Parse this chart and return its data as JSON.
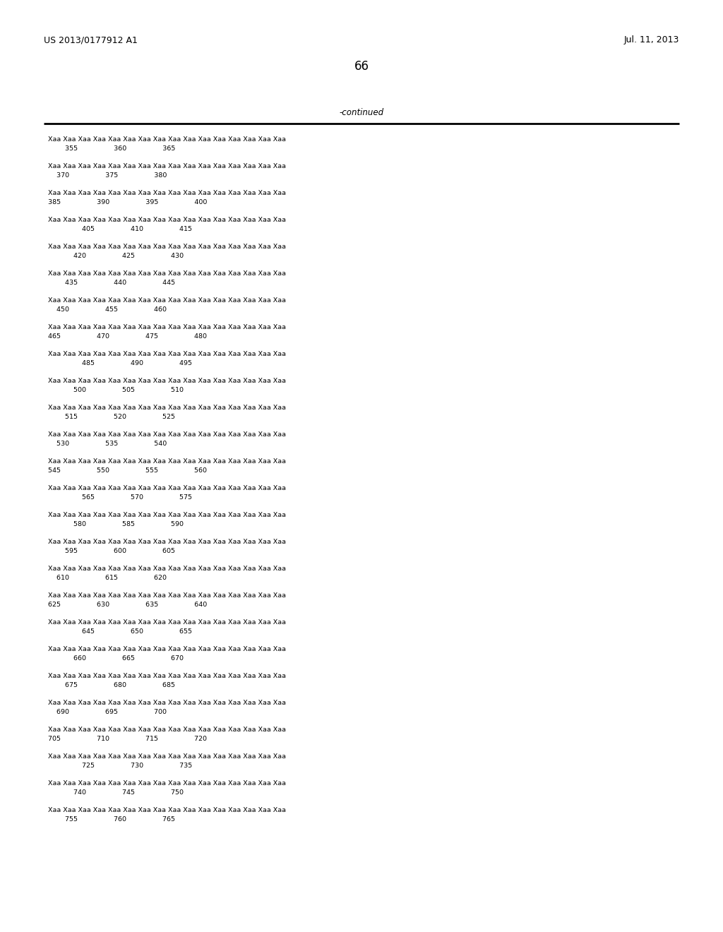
{
  "header_left": "US 2013/0177912 A1",
  "header_right": "Jul. 11, 2013",
  "page_number": "66",
  "continued_label": "-continued",
  "background_color": "#ffffff",
  "text_color": "#000000",
  "sequence_rows": [
    {
      "xaa_line": "Xaa Xaa Xaa Xaa Xaa Xaa Xaa Xaa Xaa Xaa Xaa Xaa Xaa Xaa Xaa Xaa",
      "num_line": "        355                 360                 365"
    },
    {
      "xaa_line": "Xaa Xaa Xaa Xaa Xaa Xaa Xaa Xaa Xaa Xaa Xaa Xaa Xaa Xaa Xaa Xaa",
      "num_line": "    370                 375                 380"
    },
    {
      "xaa_line": "Xaa Xaa Xaa Xaa Xaa Xaa Xaa Xaa Xaa Xaa Xaa Xaa Xaa Xaa Xaa Xaa",
      "num_line": "385                 390                 395                 400"
    },
    {
      "xaa_line": "Xaa Xaa Xaa Xaa Xaa Xaa Xaa Xaa Xaa Xaa Xaa Xaa Xaa Xaa Xaa Xaa",
      "num_line": "                405                 410                 415"
    },
    {
      "xaa_line": "Xaa Xaa Xaa Xaa Xaa Xaa Xaa Xaa Xaa Xaa Xaa Xaa Xaa Xaa Xaa Xaa",
      "num_line": "            420                 425                 430"
    },
    {
      "xaa_line": "Xaa Xaa Xaa Xaa Xaa Xaa Xaa Xaa Xaa Xaa Xaa Xaa Xaa Xaa Xaa Xaa",
      "num_line": "        435                 440                 445"
    },
    {
      "xaa_line": "Xaa Xaa Xaa Xaa Xaa Xaa Xaa Xaa Xaa Xaa Xaa Xaa Xaa Xaa Xaa Xaa",
      "num_line": "    450                 455                 460"
    },
    {
      "xaa_line": "Xaa Xaa Xaa Xaa Xaa Xaa Xaa Xaa Xaa Xaa Xaa Xaa Xaa Xaa Xaa Xaa",
      "num_line": "465                 470                 475                 480"
    },
    {
      "xaa_line": "Xaa Xaa Xaa Xaa Xaa Xaa Xaa Xaa Xaa Xaa Xaa Xaa Xaa Xaa Xaa Xaa",
      "num_line": "                485                 490                 495"
    },
    {
      "xaa_line": "Xaa Xaa Xaa Xaa Xaa Xaa Xaa Xaa Xaa Xaa Xaa Xaa Xaa Xaa Xaa Xaa",
      "num_line": "            500                 505                 510"
    },
    {
      "xaa_line": "Xaa Xaa Xaa Xaa Xaa Xaa Xaa Xaa Xaa Xaa Xaa Xaa Xaa Xaa Xaa Xaa",
      "num_line": "        515                 520                 525"
    },
    {
      "xaa_line": "Xaa Xaa Xaa Xaa Xaa Xaa Xaa Xaa Xaa Xaa Xaa Xaa Xaa Xaa Xaa Xaa",
      "num_line": "    530                 535                 540"
    },
    {
      "xaa_line": "Xaa Xaa Xaa Xaa Xaa Xaa Xaa Xaa Xaa Xaa Xaa Xaa Xaa Xaa Xaa Xaa",
      "num_line": "545                 550                 555                 560"
    },
    {
      "xaa_line": "Xaa Xaa Xaa Xaa Xaa Xaa Xaa Xaa Xaa Xaa Xaa Xaa Xaa Xaa Xaa Xaa",
      "num_line": "                565                 570                 575"
    },
    {
      "xaa_line": "Xaa Xaa Xaa Xaa Xaa Xaa Xaa Xaa Xaa Xaa Xaa Xaa Xaa Xaa Xaa Xaa",
      "num_line": "            580                 585                 590"
    },
    {
      "xaa_line": "Xaa Xaa Xaa Xaa Xaa Xaa Xaa Xaa Xaa Xaa Xaa Xaa Xaa Xaa Xaa Xaa",
      "num_line": "        595                 600                 605"
    },
    {
      "xaa_line": "Xaa Xaa Xaa Xaa Xaa Xaa Xaa Xaa Xaa Xaa Xaa Xaa Xaa Xaa Xaa Xaa",
      "num_line": "    610                 615                 620"
    },
    {
      "xaa_line": "Xaa Xaa Xaa Xaa Xaa Xaa Xaa Xaa Xaa Xaa Xaa Xaa Xaa Xaa Xaa Xaa",
      "num_line": "625                 630                 635                 640"
    },
    {
      "xaa_line": "Xaa Xaa Xaa Xaa Xaa Xaa Xaa Xaa Xaa Xaa Xaa Xaa Xaa Xaa Xaa Xaa",
      "num_line": "                645                 650                 655"
    },
    {
      "xaa_line": "Xaa Xaa Xaa Xaa Xaa Xaa Xaa Xaa Xaa Xaa Xaa Xaa Xaa Xaa Xaa Xaa",
      "num_line": "            660                 665                 670"
    },
    {
      "xaa_line": "Xaa Xaa Xaa Xaa Xaa Xaa Xaa Xaa Xaa Xaa Xaa Xaa Xaa Xaa Xaa Xaa",
      "num_line": "        675                 680                 685"
    },
    {
      "xaa_line": "Xaa Xaa Xaa Xaa Xaa Xaa Xaa Xaa Xaa Xaa Xaa Xaa Xaa Xaa Xaa Xaa",
      "num_line": "    690                 695                 700"
    },
    {
      "xaa_line": "Xaa Xaa Xaa Xaa Xaa Xaa Xaa Xaa Xaa Xaa Xaa Xaa Xaa Xaa Xaa Xaa",
      "num_line": "705                 710                 715                 720"
    },
    {
      "xaa_line": "Xaa Xaa Xaa Xaa Xaa Xaa Xaa Xaa Xaa Xaa Xaa Xaa Xaa Xaa Xaa Xaa",
      "num_line": "                725                 730                 735"
    },
    {
      "xaa_line": "Xaa Xaa Xaa Xaa Xaa Xaa Xaa Xaa Xaa Xaa Xaa Xaa Xaa Xaa Xaa Xaa",
      "num_line": "            740                 745                 750"
    },
    {
      "xaa_line": "Xaa Xaa Xaa Xaa Xaa Xaa Xaa Xaa Xaa Xaa Xaa Xaa Xaa Xaa Xaa Xaa",
      "num_line": "        755                 760                 765"
    }
  ]
}
